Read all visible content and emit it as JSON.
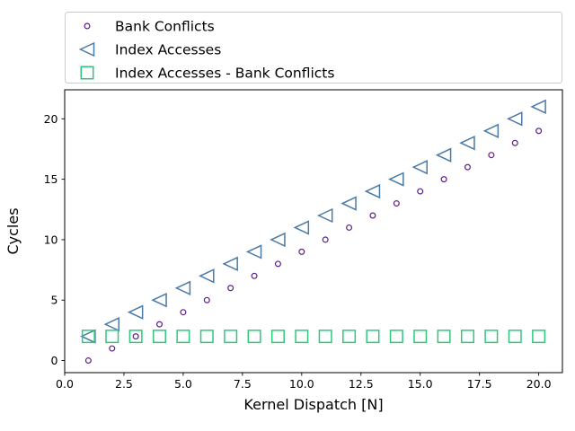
{
  "figure": {
    "background": "#ffffff"
  },
  "chart_data": {
    "type": "scatter",
    "title": "",
    "xlabel": "Kernel Dispatch [N]",
    "ylabel": "Cycles",
    "x": [
      1,
      2,
      3,
      4,
      5,
      6,
      7,
      8,
      9,
      10,
      11,
      12,
      13,
      14,
      15,
      16,
      17,
      18,
      19,
      20
    ],
    "series": [
      {
        "name": "Bank Conflicts",
        "marker": "circle",
        "color": "#5c1f87",
        "values": [
          0,
          1,
          2,
          3,
          4,
          5,
          6,
          7,
          8,
          9,
          10,
          11,
          12,
          13,
          14,
          15,
          16,
          17,
          18,
          19
        ]
      },
      {
        "name": "Index Accesses",
        "marker": "triangle-left",
        "color": "#4a7aa5",
        "values": [
          2,
          3,
          4,
          5,
          6,
          7,
          8,
          9,
          10,
          11,
          12,
          13,
          14,
          15,
          16,
          17,
          18,
          19,
          20,
          21
        ]
      },
      {
        "name": "Index Accesses - Bank Conflicts",
        "marker": "square",
        "color": "#2cc97b",
        "values": [
          2,
          2,
          2,
          2,
          2,
          2,
          2,
          2,
          2,
          2,
          2,
          2,
          2,
          2,
          2,
          2,
          2,
          2,
          2,
          2
        ]
      }
    ],
    "xlim": [
      0,
      21
    ],
    "ylim": [
      -1,
      22.4
    ],
    "xticks": [
      0,
      2.5,
      5,
      7.5,
      10,
      12.5,
      15,
      17.5,
      20
    ],
    "xtick_labels": [
      "0.0",
      "2.5",
      "5.0",
      "7.5",
      "10.0",
      "12.5",
      "15.0",
      "17.5",
      "20.0"
    ],
    "yticks": [
      0,
      5,
      10,
      15,
      20
    ],
    "ytick_labels": [
      "0",
      "5",
      "10",
      "15",
      "20"
    ],
    "grid": false,
    "legend_position": "top-expanded",
    "legend_border_color": "#cccccc",
    "axis_color": "#000000"
  }
}
